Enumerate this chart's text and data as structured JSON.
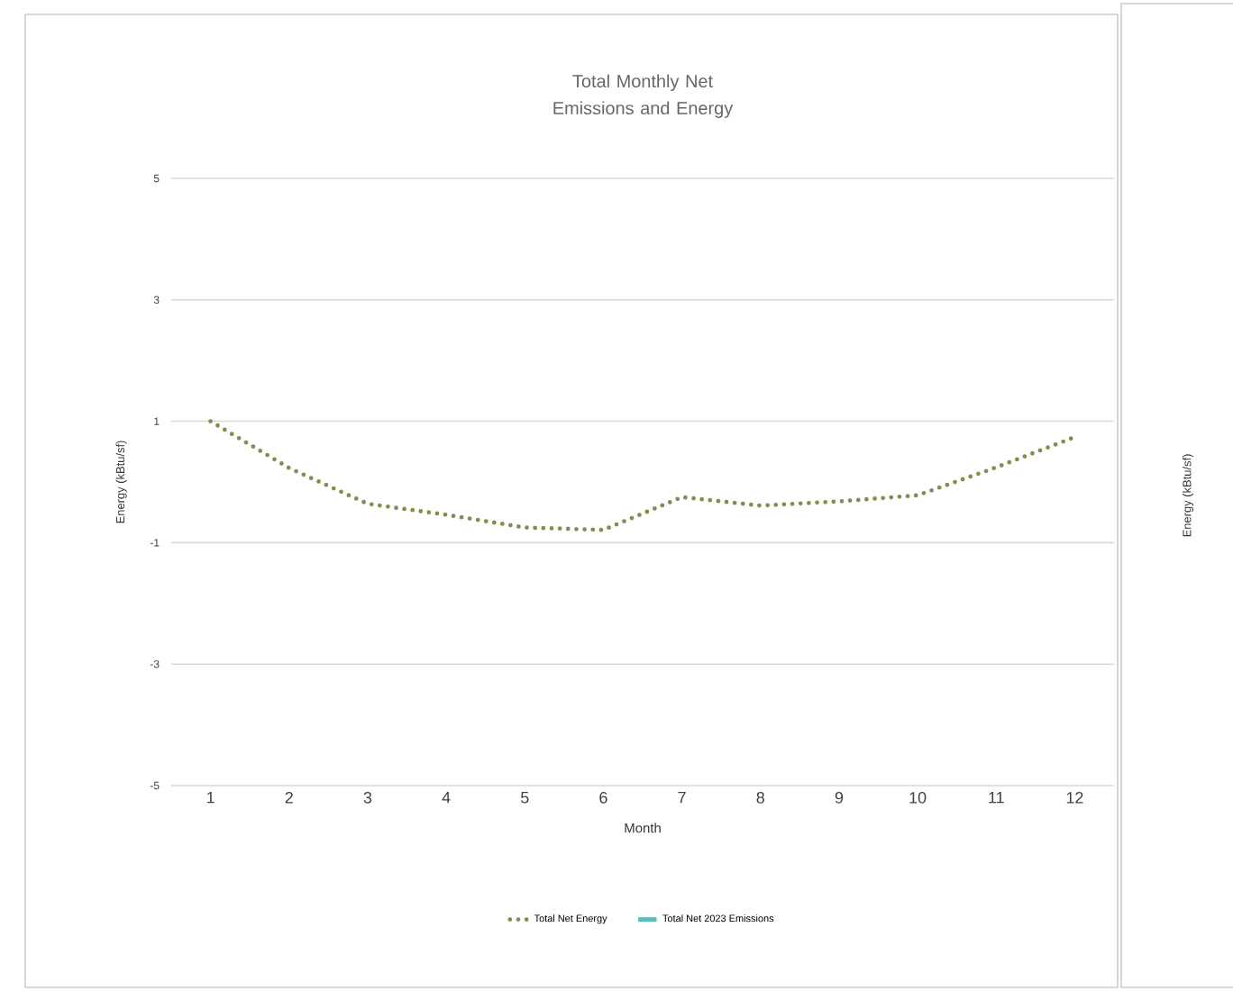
{
  "chart_data": [
    {
      "type": "line",
      "title": "Total Monthly Net Emissions and Energy",
      "xlabel": "Month",
      "ylabel": "Energy (kBtu/sf)",
      "x": [
        1,
        2,
        3,
        4,
        5,
        6,
        7,
        8,
        9,
        10,
        11,
        12
      ],
      "xlim": [
        0.5,
        12.5
      ],
      "xticks": [
        1,
        2,
        3,
        4,
        5,
        6,
        7,
        8,
        9,
        10,
        11,
        12
      ],
      "ylim": [
        -5,
        5
      ],
      "yticks": [
        -5,
        -3,
        -1,
        1,
        3,
        5
      ],
      "grid": "y",
      "legend": "bottom",
      "marker": "none",
      "series": [
        {
          "name": "Total Net Energy",
          "color": "#7f8f4f",
          "line_style": "dotted",
          "values": [
            1.0,
            0.23,
            -0.36,
            -0.54,
            -0.75,
            -0.79,
            -0.25,
            -0.39,
            -0.32,
            -0.22,
            0.24,
            0.74
          ]
        },
        {
          "name": "Total Net 2023 Emissions",
          "color": "#5bbcb8",
          "line_style": "solid",
          "values": [
            null,
            null,
            null,
            null,
            null,
            null,
            null,
            null,
            null,
            null,
            null,
            null
          ]
        }
      ]
    },
    {
      "type": "other",
      "ylabel": "Energy (kBtu/sf)"
    }
  ]
}
